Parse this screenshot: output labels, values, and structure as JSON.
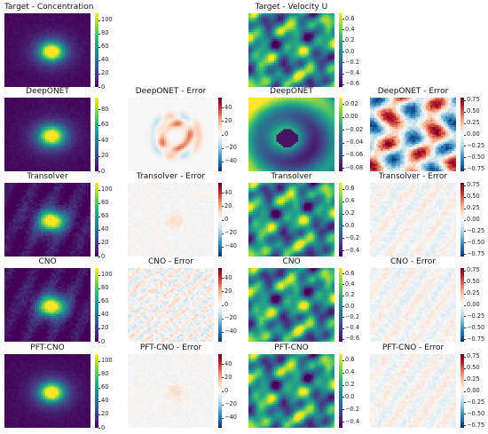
{
  "figure": {
    "rows": [
      {
        "panels": [
          {
            "title": "Target - Concentration",
            "field": "concentration",
            "variant": "target",
            "colormap": "viridis",
            "ticks": [
              "100",
              "80",
              "60",
              "40",
              "20",
              "0"
            ],
            "range": [
              0,
              110
            ]
          },
          null,
          {
            "title": "Target - Velocity U",
            "field": "velocity",
            "variant": "target",
            "colormap": "viridis",
            "ticks": [
              "0.6",
              "0.4",
              "0.2",
              "0.0",
              "−0.2",
              "−0.4",
              "−0.6"
            ],
            "range": [
              -0.65,
              0.7
            ]
          },
          null
        ]
      },
      {
        "panels": [
          {
            "title": "DeepONET",
            "field": "concentration",
            "variant": "smooth",
            "colormap": "viridis",
            "ticks": [
              "80",
              "60",
              "40",
              "20",
              "0"
            ],
            "range": [
              0,
              95
            ]
          },
          {
            "title": "DeepONET - Error",
            "field": "conc-error",
            "variant": "ring",
            "colormap": "rdbu",
            "ticks": [
              "40",
              "20",
              "0",
              "−20",
              "−40"
            ],
            "range": [
              -55,
              55
            ]
          },
          {
            "title": "DeepONET",
            "field": "velocity",
            "variant": "blob",
            "colormap": "viridis",
            "ticks": [
              "0.02",
              "0.00",
              "−0.02",
              "−0.04",
              "−0.06",
              "−0.08"
            ],
            "range": [
              -0.085,
              0.03
            ]
          },
          {
            "title": "DeepONET - Error",
            "field": "vel-error",
            "variant": "strong",
            "colormap": "rdbu",
            "ticks": [
              "0.75",
              "0.50",
              "0.25",
              "0.00",
              "−0.25",
              "−0.50",
              "−0.75"
            ],
            "range": [
              -0.8,
              0.8
            ]
          }
        ]
      },
      {
        "panels": [
          {
            "title": "Transolver",
            "field": "concentration",
            "variant": "noisy",
            "colormap": "viridis",
            "ticks": [
              "100",
              "80",
              "60",
              "40",
              "20",
              "0"
            ],
            "range": [
              0,
              110
            ]
          },
          {
            "title": "Transolver - Error",
            "field": "conc-error",
            "variant": "faint",
            "colormap": "rdbu",
            "ticks": [
              "40",
              "20",
              "0",
              "−20",
              "−40"
            ],
            "range": [
              -55,
              55
            ]
          },
          {
            "title": "Transolver",
            "field": "velocity",
            "variant": "target",
            "colormap": "viridis",
            "ticks": [
              "0.6",
              "0.4",
              "0.2",
              "0.0",
              "−0.2",
              "−0.4"
            ],
            "range": [
              -0.5,
              0.7
            ]
          },
          {
            "title": "Transolver - Error",
            "field": "vel-error",
            "variant": "faint",
            "colormap": "rdbu",
            "ticks": [
              "0.75",
              "0.50",
              "0.25",
              "0.00",
              "−0.25",
              "−0.50",
              "−0.75"
            ],
            "range": [
              -0.8,
              0.8
            ]
          }
        ]
      },
      {
        "panels": [
          {
            "title": "CNO",
            "field": "concentration",
            "variant": "noisy",
            "colormap": "viridis",
            "ticks": [
              "100",
              "80",
              "60",
              "40",
              "20",
              "0"
            ],
            "range": [
              0,
              110
            ]
          },
          {
            "title": "CNO - Error",
            "field": "conc-error",
            "variant": "speckle",
            "colormap": "rdbu",
            "ticks": [
              "40",
              "20",
              "0",
              "−20",
              "−40"
            ],
            "range": [
              -55,
              55
            ]
          },
          {
            "title": "CNO",
            "field": "velocity",
            "variant": "target",
            "colormap": "viridis",
            "ticks": [
              "0.6",
              "0.4",
              "0.2",
              "0.0",
              "−0.2",
              "−0.4",
              "−0.6"
            ],
            "range": [
              -0.65,
              0.7
            ]
          },
          {
            "title": "CNO - Error",
            "field": "vel-error",
            "variant": "faint",
            "colormap": "rdbu",
            "ticks": [
              "0.75",
              "0.50",
              "0.25",
              "0.00",
              "−0.25",
              "−0.50",
              "−0.75"
            ],
            "range": [
              -0.8,
              0.8
            ]
          }
        ]
      },
      {
        "panels": [
          {
            "title": "PFT-CNO",
            "field": "concentration",
            "variant": "target",
            "colormap": "viridis",
            "ticks": [
              "100",
              "80",
              "60",
              "40",
              "20",
              "0"
            ],
            "range": [
              0,
              110
            ]
          },
          {
            "title": "PFT-CNO - Error",
            "field": "conc-error",
            "variant": "faint",
            "colormap": "rdbu",
            "ticks": [
              "40",
              "20",
              "0",
              "−20",
              "−40"
            ],
            "range": [
              -55,
              55
            ]
          },
          {
            "title": "PFT-CNO",
            "field": "velocity",
            "variant": "target",
            "colormap": "viridis",
            "ticks": [
              "0.6",
              "0.4",
              "0.2",
              "0.0",
              "−0.2",
              "−0.4"
            ],
            "range": [
              -0.5,
              0.7
            ]
          },
          {
            "title": "PFT-CNO - Error",
            "field": "vel-error",
            "variant": "faint",
            "colormap": "rdbu",
            "ticks": [
              "0.75",
              "0.50",
              "0.25",
              "0.00",
              "−0.25",
              "−0.50",
              "−0.75"
            ],
            "range": [
              -0.8,
              0.8
            ]
          }
        ]
      }
    ]
  }
}
